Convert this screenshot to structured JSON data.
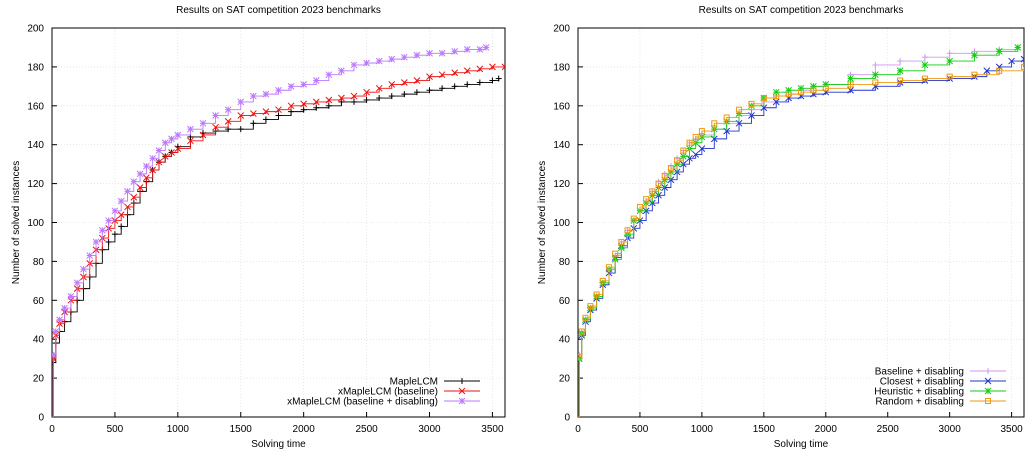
{
  "chart_data": [
    {
      "type": "line",
      "title": "Results on SAT competition 2023 benchmarks",
      "xlabel": "Solving time",
      "ylabel": "Number of solved instances",
      "xlim": [
        0,
        3600
      ],
      "ylim": [
        0,
        200
      ],
      "xticks": [
        0,
        500,
        1000,
        1500,
        2000,
        2500,
        3000,
        3500
      ],
      "yticks": [
        0,
        20,
        40,
        60,
        80,
        100,
        120,
        140,
        160,
        180,
        200
      ],
      "grid": true,
      "legend_position": "bottom-right",
      "series": [
        {
          "name": "MapleLCM",
          "color": "#000000",
          "marker": "plus",
          "x": [
            0,
            10,
            30,
            60,
            100,
            150,
            200,
            250,
            300,
            350,
            400,
            450,
            500,
            550,
            600,
            650,
            700,
            750,
            800,
            850,
            900,
            950,
            1000,
            1100,
            1200,
            1300,
            1400,
            1500,
            1600,
            1700,
            1800,
            1900,
            2000,
            2100,
            2200,
            2300,
            2400,
            2500,
            2600,
            2700,
            2800,
            2900,
            3000,
            3100,
            3200,
            3300,
            3400,
            3500,
            3550
          ],
          "y": [
            0,
            28,
            38,
            44,
            49,
            54,
            60,
            66,
            72,
            79,
            86,
            90,
            94,
            98,
            104,
            110,
            116,
            121,
            127,
            131,
            134,
            136,
            139,
            144,
            146,
            147,
            148,
            148,
            151,
            153,
            155,
            157,
            158,
            159,
            160,
            162,
            162,
            163,
            164,
            165,
            166,
            167,
            168,
            169,
            170,
            171,
            172,
            173,
            174
          ]
        },
        {
          "name": "xMapleLCM (baseline)",
          "color": "#ee1111",
          "marker": "cross",
          "x": [
            0,
            10,
            30,
            60,
            100,
            150,
            200,
            250,
            300,
            350,
            400,
            450,
            500,
            550,
            600,
            650,
            700,
            750,
            800,
            850,
            900,
            950,
            1000,
            1100,
            1200,
            1300,
            1400,
            1500,
            1600,
            1700,
            1800,
            1900,
            2000,
            2100,
            2200,
            2300,
            2400,
            2500,
            2600,
            2700,
            2800,
            2900,
            3000,
            3100,
            3200,
            3300,
            3400,
            3500,
            3600
          ],
          "y": [
            0,
            30,
            42,
            48,
            54,
            60,
            66,
            72,
            79,
            86,
            92,
            97,
            101,
            104,
            108,
            113,
            118,
            123,
            127,
            131,
            134,
            136,
            138,
            142,
            145,
            149,
            152,
            155,
            156,
            157,
            158,
            160,
            161,
            162,
            163,
            164,
            165,
            167,
            169,
            171,
            172,
            173,
            175,
            176,
            177,
            178,
            179,
            180,
            180
          ]
        },
        {
          "name": "xMapleLCM (baseline + disabling)",
          "color": "#bb77ff",
          "marker": "star",
          "x": [
            0,
            10,
            30,
            60,
            100,
            150,
            200,
            250,
            300,
            350,
            400,
            450,
            500,
            550,
            600,
            650,
            700,
            750,
            800,
            850,
            900,
            950,
            1000,
            1100,
            1200,
            1300,
            1400,
            1500,
            1600,
            1700,
            1800,
            1900,
            2000,
            2100,
            2200,
            2300,
            2400,
            2500,
            2600,
            2700,
            2800,
            2900,
            3000,
            3100,
            3200,
            3300,
            3400,
            3450
          ],
          "y": [
            0,
            32,
            44,
            50,
            56,
            62,
            69,
            76,
            83,
            90,
            96,
            101,
            106,
            111,
            116,
            121,
            125,
            129,
            133,
            137,
            141,
            143,
            145,
            148,
            151,
            155,
            158,
            162,
            165,
            166,
            168,
            170,
            171,
            173,
            176,
            178,
            181,
            182,
            183,
            184,
            185,
            186,
            187,
            187,
            188,
            189,
            189,
            190
          ]
        }
      ]
    },
    {
      "type": "line",
      "title": "Results on SAT competition 2023 benchmarks",
      "xlabel": "Solving time",
      "ylabel": "Number of solved instances",
      "xlim": [
        0,
        3600
      ],
      "ylim": [
        0,
        200
      ],
      "xticks": [
        0,
        500,
        1000,
        1500,
        2000,
        2500,
        3000,
        3500
      ],
      "yticks": [
        0,
        20,
        40,
        60,
        80,
        100,
        120,
        140,
        160,
        180,
        200
      ],
      "grid": true,
      "legend_position": "bottom-right",
      "series": [
        {
          "name": "Baseline + disabling",
          "color": "#cc99ee",
          "marker": "plus",
          "x": [
            0,
            10,
            30,
            60,
            100,
            150,
            200,
            250,
            300,
            350,
            400,
            450,
            500,
            550,
            600,
            650,
            700,
            750,
            800,
            850,
            900,
            950,
            1000,
            1100,
            1200,
            1300,
            1400,
            1500,
            1600,
            1700,
            1800,
            1900,
            2000,
            2200,
            2400,
            2600,
            2800,
            3000,
            3200,
            3400,
            3550
          ],
          "y": [
            0,
            32,
            44,
            50,
            56,
            62,
            69,
            76,
            83,
            90,
            96,
            101,
            106,
            111,
            116,
            121,
            125,
            129,
            133,
            137,
            141,
            143,
            145,
            148,
            151,
            155,
            158,
            162,
            165,
            166,
            168,
            170,
            171,
            176,
            181,
            183,
            185,
            187,
            188,
            189,
            190
          ]
        },
        {
          "name": "Closest + disabling",
          "color": "#2233cc",
          "marker": "cross",
          "x": [
            0,
            10,
            30,
            60,
            100,
            150,
            200,
            250,
            300,
            350,
            400,
            450,
            500,
            550,
            600,
            650,
            700,
            750,
            800,
            850,
            900,
            950,
            1000,
            1100,
            1200,
            1300,
            1400,
            1500,
            1600,
            1700,
            1800,
            1900,
            2000,
            2200,
            2400,
            2600,
            2800,
            3000,
            3200,
            3300,
            3400,
            3500,
            3600
          ],
          "y": [
            0,
            30,
            42,
            49,
            55,
            61,
            68,
            74,
            82,
            88,
            92,
            97,
            101,
            106,
            110,
            114,
            118,
            122,
            126,
            130,
            133,
            135,
            138,
            143,
            147,
            151,
            155,
            159,
            162,
            164,
            165,
            166,
            167,
            168,
            170,
            172,
            173,
            174,
            175,
            178,
            180,
            183,
            184
          ]
        },
        {
          "name": "Heuristic + disabling",
          "color": "#11cc11",
          "marker": "star",
          "x": [
            0,
            10,
            30,
            60,
            100,
            150,
            200,
            250,
            300,
            350,
            400,
            450,
            500,
            550,
            600,
            650,
            700,
            750,
            800,
            850,
            900,
            950,
            1000,
            1100,
            1200,
            1300,
            1400,
            1500,
            1600,
            1700,
            1800,
            1900,
            2000,
            2200,
            2400,
            2600,
            2800,
            3000,
            3200,
            3400,
            3550
          ],
          "y": [
            0,
            30,
            43,
            50,
            56,
            62,
            69,
            76,
            81,
            87,
            94,
            101,
            106,
            110,
            114,
            118,
            122,
            126,
            130,
            134,
            138,
            141,
            144,
            148,
            152,
            156,
            160,
            164,
            167,
            168,
            169,
            170,
            171,
            174,
            176,
            178,
            181,
            183,
            186,
            188,
            190
          ]
        },
        {
          "name": "Random + disabling",
          "color": "#ee9911",
          "marker": "square",
          "x": [
            0,
            10,
            30,
            60,
            100,
            150,
            200,
            250,
            300,
            350,
            400,
            450,
            500,
            550,
            600,
            650,
            700,
            750,
            800,
            850,
            900,
            950,
            1000,
            1100,
            1200,
            1300,
            1400,
            1500,
            1600,
            1700,
            1800,
            1900,
            2000,
            2200,
            2400,
            2600,
            2800,
            3000,
            3200,
            3400,
            3600
          ],
          "y": [
            0,
            31,
            44,
            51,
            57,
            63,
            70,
            77,
            84,
            90,
            96,
            102,
            108,
            112,
            116,
            120,
            124,
            128,
            132,
            137,
            141,
            144,
            147,
            151,
            154,
            158,
            161,
            164,
            165,
            166,
            167,
            168,
            169,
            171,
            172,
            173,
            174,
            175,
            176,
            178,
            180
          ]
        }
      ]
    }
  ]
}
